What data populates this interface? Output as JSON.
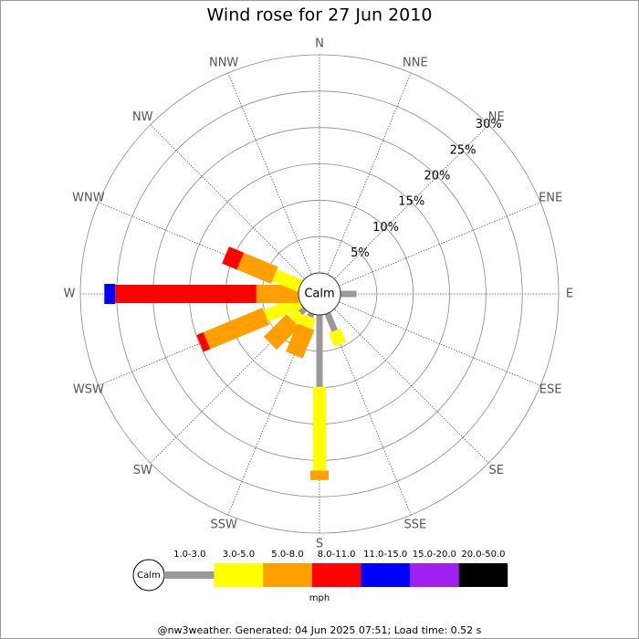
{
  "chart_data": {
    "type": "windrose",
    "title": "Wind rose for 27 Jun 2010",
    "categories": [
      "N",
      "NNE",
      "NE",
      "ENE",
      "E",
      "ESE",
      "SE",
      "SSE",
      "S",
      "SSW",
      "SW",
      "WSW",
      "W",
      "WNW",
      "NW",
      "NNW"
    ],
    "calm_label": "Calm",
    "unit": "mph",
    "series": [
      {
        "name": "1.0-3.0",
        "color": "#999999",
        "values": [
          0,
          0,
          0,
          0,
          2.2,
          0,
          0,
          2.6,
          9.9,
          0.5,
          0.8,
          0,
          0,
          0,
          0,
          0
        ]
      },
      {
        "name": "3.0-5.0",
        "color": "#ffff00",
        "values": [
          0,
          0,
          0,
          0,
          0,
          0,
          0,
          2.0,
          11.5,
          1.5,
          1.5,
          5.1,
          0,
          3.8,
          0,
          0
        ]
      },
      {
        "name": "5.0-8.0",
        "color": "#ff9f00",
        "values": [
          0,
          0,
          0,
          0,
          0,
          0,
          0,
          0,
          1.3,
          4.2,
          4.4,
          8.8,
          5.8,
          5.1,
          0,
          0
        ]
      },
      {
        "name": "8.0-11.0",
        "color": "#ff0000",
        "values": [
          0,
          0,
          0,
          0,
          0,
          0,
          0,
          0,
          0,
          0,
          0,
          1.0,
          19.4,
          2.2,
          0,
          0
        ]
      },
      {
        "name": "11.0-15.0",
        "color": "#0000ff",
        "values": [
          0,
          0,
          0,
          0,
          0,
          0,
          0,
          0,
          0,
          0,
          0,
          0,
          1.5,
          0,
          0,
          0
        ]
      },
      {
        "name": "15.0-20.0",
        "color": "#a020f0",
        "values": [
          0,
          0,
          0,
          0,
          0,
          0,
          0,
          0,
          0,
          0,
          0,
          0,
          0,
          0,
          0,
          0
        ]
      },
      {
        "name": "20.0-50.0",
        "color": "#000000",
        "values": [
          0,
          0,
          0,
          0,
          0,
          0,
          0,
          0,
          0,
          0,
          0,
          0,
          0,
          0,
          0,
          0
        ]
      }
    ],
    "ylim": [
      0,
      30
    ],
    "yticks": [
      {
        "value": 5,
        "label": "5%"
      },
      {
        "value": 10,
        "label": "10%"
      },
      {
        "value": 15,
        "label": "15%"
      },
      {
        "value": 20,
        "label": "20%"
      },
      {
        "value": 25,
        "label": "25%"
      },
      {
        "value": 30,
        "label": "30%"
      }
    ],
    "footer": "@nw3weather. Generated: 04 Jun 2025 07:51; Load time: 0.52 s"
  }
}
